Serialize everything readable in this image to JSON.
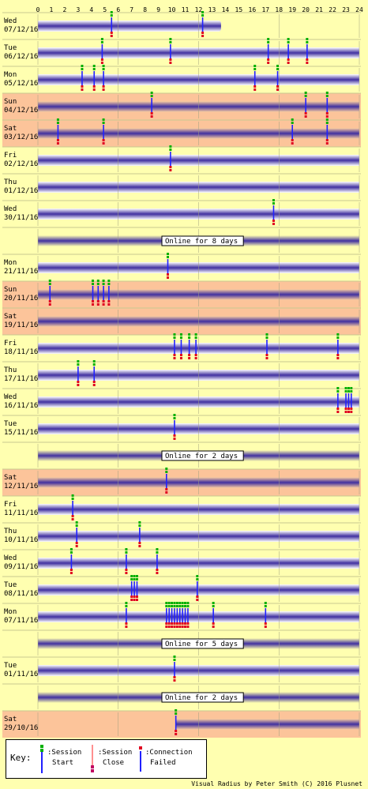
{
  "hours": [
    "0",
    "1",
    "2",
    "3",
    "4",
    "5",
    "6",
    "7",
    "8",
    "9",
    "10",
    "11",
    "12",
    "13",
    "14",
    "15",
    "16",
    "17",
    "18",
    "19",
    "20",
    "21",
    "22",
    "23",
    "24"
  ],
  "rows": [
    {
      "day": "Wed",
      "date": "07/12/16",
      "type": "day",
      "weekend": false,
      "events": [
        {
          "h": 5.5,
          "k": "start"
        },
        {
          "h": 12.3,
          "k": "start"
        }
      ],
      "partial_end": 13.5
    },
    {
      "day": "Tue",
      "date": "06/12/16",
      "type": "day",
      "weekend": false,
      "events": [
        {
          "h": 4.8,
          "k": "start"
        },
        {
          "h": 9.9,
          "k": "start"
        },
        {
          "h": 17.2,
          "k": "start"
        },
        {
          "h": 18.7,
          "k": "start"
        },
        {
          "h": 20.1,
          "k": "start"
        }
      ]
    },
    {
      "day": "Mon",
      "date": "05/12/16",
      "type": "day",
      "weekend": false,
      "events": [
        {
          "h": 3.3,
          "k": "start"
        },
        {
          "h": 4.2,
          "k": "start"
        },
        {
          "h": 4.9,
          "k": "start"
        },
        {
          "h": 16.2,
          "k": "start"
        },
        {
          "h": 17.9,
          "k": "start"
        }
      ]
    },
    {
      "day": "Sun",
      "date": "04/12/16",
      "type": "day",
      "weekend": true,
      "events": [
        {
          "h": 8.5,
          "k": "start"
        },
        {
          "h": 20.0,
          "k": "start"
        },
        {
          "h": 21.6,
          "k": "start"
        }
      ]
    },
    {
      "day": "Sat",
      "date": "03/12/16",
      "type": "day",
      "weekend": true,
      "events": [
        {
          "h": 1.5,
          "k": "start"
        },
        {
          "h": 4.9,
          "k": "start"
        },
        {
          "h": 19.0,
          "k": "start"
        },
        {
          "h": 21.6,
          "k": "start"
        }
      ]
    },
    {
      "day": "Fri",
      "date": "02/12/16",
      "type": "day",
      "weekend": false,
      "events": [
        {
          "h": 9.9,
          "k": "start"
        }
      ]
    },
    {
      "day": "Thu",
      "date": "01/12/16",
      "type": "day",
      "weekend": false,
      "events": []
    },
    {
      "day": "Wed",
      "date": "30/11/16",
      "type": "day",
      "weekend": false,
      "events": [
        {
          "h": 17.6,
          "k": "start"
        }
      ]
    },
    {
      "type": "gap",
      "text": "Online for 8 days"
    },
    {
      "day": "Mon",
      "date": "21/11/16",
      "type": "day",
      "weekend": false,
      "events": [
        {
          "h": 9.7,
          "k": "start"
        }
      ]
    },
    {
      "day": "Sun",
      "date": "20/11/16",
      "type": "day",
      "weekend": true,
      "events": [
        {
          "h": 0.9,
          "k": "start"
        },
        {
          "h": 4.1,
          "k": "start"
        },
        {
          "h": 4.5,
          "k": "start"
        },
        {
          "h": 4.9,
          "k": "start"
        },
        {
          "h": 5.3,
          "k": "start"
        }
      ]
    },
    {
      "day": "Sat",
      "date": "19/11/16",
      "type": "day",
      "weekend": true,
      "events": []
    },
    {
      "day": "Fri",
      "date": "18/11/16",
      "type": "day",
      "weekend": false,
      "events": [
        {
          "h": 10.2,
          "k": "start"
        },
        {
          "h": 10.7,
          "k": "start"
        },
        {
          "h": 11.3,
          "k": "start"
        },
        {
          "h": 11.8,
          "k": "start"
        },
        {
          "h": 17.1,
          "k": "start"
        },
        {
          "h": 22.4,
          "k": "start"
        }
      ]
    },
    {
      "day": "Thu",
      "date": "17/11/16",
      "type": "day",
      "weekend": false,
      "events": [
        {
          "h": 3.0,
          "k": "start"
        },
        {
          "h": 4.2,
          "k": "start"
        }
      ]
    },
    {
      "day": "Wed",
      "date": "16/11/16",
      "type": "day",
      "weekend": false,
      "events": [
        {
          "h": 22.4,
          "k": "start"
        },
        {
          "h": 23.0,
          "k": "start"
        },
        {
          "h": 23.2,
          "k": "start"
        },
        {
          "h": 23.4,
          "k": "start"
        }
      ]
    },
    {
      "day": "Tue",
      "date": "15/11/16",
      "type": "day",
      "weekend": false,
      "events": [
        {
          "h": 10.2,
          "k": "start"
        }
      ]
    },
    {
      "type": "gap",
      "text": "Online for 2 days"
    },
    {
      "day": "Sat",
      "date": "12/11/16",
      "type": "day",
      "weekend": true,
      "events": [
        {
          "h": 9.6,
          "k": "start"
        }
      ]
    },
    {
      "day": "Fri",
      "date": "11/11/16",
      "type": "day",
      "weekend": false,
      "events": [
        {
          "h": 2.6,
          "k": "start"
        }
      ]
    },
    {
      "day": "Thu",
      "date": "10/11/16",
      "type": "day",
      "weekend": false,
      "events": [
        {
          "h": 2.9,
          "k": "start"
        },
        {
          "h": 7.6,
          "k": "start"
        }
      ]
    },
    {
      "day": "Wed",
      "date": "09/11/16",
      "type": "day",
      "weekend": false,
      "events": [
        {
          "h": 2.5,
          "k": "start"
        },
        {
          "h": 6.6,
          "k": "start"
        },
        {
          "h": 8.9,
          "k": "start"
        }
      ]
    },
    {
      "day": "Tue",
      "date": "08/11/16",
      "type": "day",
      "weekend": false,
      "events": [
        {
          "h": 7.0,
          "k": "start"
        },
        {
          "h": 7.2,
          "k": "start"
        },
        {
          "h": 7.4,
          "k": "start"
        },
        {
          "h": 11.9,
          "k": "start"
        }
      ]
    },
    {
      "day": "Mon",
      "date": "07/11/16",
      "type": "day",
      "weekend": false,
      "events": [
        {
          "h": 6.6,
          "k": "start"
        },
        {
          "h": 9.6,
          "k": "start"
        },
        {
          "h": 9.8,
          "k": "start"
        },
        {
          "h": 10.0,
          "k": "start"
        },
        {
          "h": 10.2,
          "k": "start"
        },
        {
          "h": 10.4,
          "k": "start"
        },
        {
          "h": 10.6,
          "k": "start"
        },
        {
          "h": 10.8,
          "k": "start"
        },
        {
          "h": 11.0,
          "k": "start"
        },
        {
          "h": 11.2,
          "k": "start"
        },
        {
          "h": 13.1,
          "k": "start"
        },
        {
          "h": 17.0,
          "k": "start"
        }
      ]
    },
    {
      "type": "gap",
      "text": "Online for 5 days"
    },
    {
      "day": "Tue",
      "date": "01/11/16",
      "type": "day",
      "weekend": false,
      "events": [
        {
          "h": 10.2,
          "k": "start"
        }
      ]
    },
    {
      "type": "gap",
      "text": "Online for 2 days"
    },
    {
      "day": "Sat",
      "date": "29/10/16",
      "type": "day",
      "weekend": true,
      "events": [
        {
          "h": 10.3,
          "k": "start"
        }
      ],
      "partial_start": 10.3
    }
  ],
  "key": {
    "label": "Key:",
    "session_start_1": ":Session",
    "session_start_2": "Start",
    "session_close_1": ":Session",
    "session_close_2": "Close",
    "conn_failed_1": ":Connection",
    "conn_failed_2": "Failed"
  },
  "credit": "Visual Radius by Peter Smith (C) 2016 Plusnet",
  "colors": {
    "background": "#ffffb0",
    "weekend": "#fcc49a",
    "band_dark": "#4030a0",
    "band_light": "#ffffff",
    "start_green": "#00b000",
    "start_blue": "#2020ff",
    "fail_red": "#e00020"
  }
}
